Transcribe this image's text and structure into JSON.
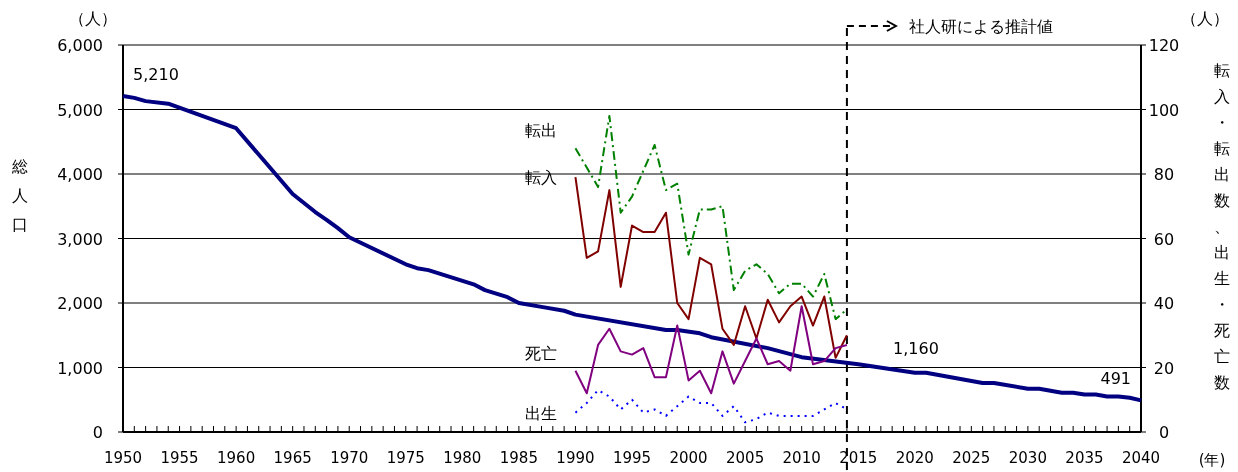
{
  "chart_data": {
    "type": "line",
    "ylabel": "総人口",
    "y2label": "転入・転出数、出生・死亡数",
    "xlabel": "(年)",
    "annotations": [
      "（人）",
      "（人）",
      "1,160"
    ],
    "xlim": [
      1950,
      2040
    ],
    "xticks": [
      1950,
      {
        "value": 1951,
        "label": null
      },
      {
        "value": 1952,
        "label": null
      },
      {
        "value": 1953,
        "label": null
      },
      {
        "value": 1954,
        "label": null
      },
      1955,
      {
        "value": 1956,
        "label": null
      },
      {
        "value": 1957,
        "label": null
      },
      {
        "value": 1958,
        "label": null
      },
      {
        "value": 1959,
        "label": null
      },
      1960,
      {
        "value": 1961,
        "label": null
      },
      {
        "value": 1962,
        "label": null
      },
      {
        "value": 1963,
        "label": null
      },
      {
        "value": 1964,
        "label": null
      },
      1965,
      {
        "value": 1966,
        "label": null
      },
      {
        "value": 1967,
        "label": null
      },
      {
        "value": 1968,
        "label": null
      },
      {
        "value": 1969,
        "label": null
      },
      1970,
      {
        "value": 1971,
        "label": null
      },
      {
        "value": 1972,
        "label": null
      },
      {
        "value": 1973,
        "label": null
      },
      {
        "value": 1974,
        "label": null
      },
      1975,
      {
        "value": 1976,
        "label": null
      },
      {
        "value": 1977,
        "label": null
      },
      {
        "value": 1978,
        "label": null
      },
      {
        "value": 1979,
        "label": null
      },
      1980,
      {
        "value": 1981,
        "label": null
      },
      {
        "value": 1982,
        "label": null
      },
      {
        "value": 1983,
        "label": null
      },
      {
        "value": 1984,
        "label": null
      },
      1985,
      {
        "value": 1986,
        "label": null
      },
      {
        "value": 1987,
        "label": null
      },
      {
        "value": 1988,
        "label": null
      },
      {
        "value": 1989,
        "label": null
      },
      1990,
      {
        "value": 1991,
        "label": null
      },
      {
        "value": 1992,
        "label": null
      },
      {
        "value": 1993,
        "label": null
      },
      {
        "value": 1994,
        "label": null
      },
      1995,
      {
        "value": 1996,
        "label": null
      },
      {
        "value": 1997,
        "label": null
      },
      {
        "value": 1998,
        "label": null
      },
      {
        "value": 1999,
        "label": null
      },
      2000,
      {
        "value": 2001,
        "label": null
      },
      {
        "value": 2002,
        "label": null
      },
      {
        "value": 2003,
        "label": null
      },
      {
        "value": 2004,
        "label": null
      },
      2005,
      {
        "value": 2006,
        "label": null
      },
      {
        "value": 2007,
        "label": null
      },
      {
        "value": 2008,
        "label": null
      },
      {
        "value": 2009,
        "label": null
      },
      2010,
      {
        "value": 2011,
        "label": null
      },
      {
        "value": 2012,
        "label": null
      },
      {
        "value": 2013,
        "label": null
      },
      {
        "value": 2014,
        "label": null
      },
      2015,
      {
        "value": 2016,
        "label": null
      },
      {
        "value": 2017,
        "label": null
      },
      {
        "value": 2018,
        "label": null
      },
      {
        "value": 2019,
        "label": null
      },
      2020,
      {
        "value": 2021,
        "label": null
      },
      {
        "value": 2022,
        "label": null
      },
      {
        "value": 2023,
        "label": null
      },
      {
        "value": 2024,
        "label": null
      },
      2025,
      {
        "value": 2026,
        "label": null
      },
      {
        "value": 2027,
        "label": null
      },
      {
        "value": 2028,
        "label": null
      },
      {
        "value": 2029,
        "label": null
      },
      2030,
      {
        "value": 2031,
        "label": null
      },
      {
        "value": 2032,
        "label": null
      },
      {
        "value": 2033,
        "label": null
      },
      {
        "value": 2034,
        "label": null
      },
      2035,
      {
        "value": 2036,
        "label": null
      },
      {
        "value": 2037,
        "label": null
      },
      {
        "value": 2038,
        "label": null
      },
      {
        "value": 2039,
        "label": null
      },
      2040
    ],
    "ylim": [
      0,
      6000
    ],
    "yticks": [
      0,
      {
        "value": 1000,
        "label": "1,000"
      },
      {
        "value": 2000,
        "label": "2,000"
      },
      {
        "value": 3000,
        "label": "3,000"
      },
      {
        "value": 4000,
        "label": "4,000"
      },
      {
        "value": 5000,
        "label": "5,000"
      },
      {
        "value": 6000,
        "label": "6,000"
      }
    ],
    "y2lim": [
      0,
      120
    ],
    "y2ticks": [
      0,
      20,
      40,
      60,
      80,
      100,
      120
    ],
    "grid": "y",
    "marker": "none",
    "ref_lines": [
      {
        "axis": "x",
        "value": 2014,
        "label": "社人研による推計値",
        "color": "#000000",
        "line_style": "dashed"
      }
    ],
    "series": [
      {
        "color": "#000080",
        "line_style": "solid",
        "x": [
          1950,
          1951,
          1952,
          1954,
          1960,
          1965,
          1967,
          1968,
          1969,
          1970,
          1975,
          1976,
          1977,
          1981,
          1982,
          1984,
          1985,
          1987,
          1989,
          1990,
          1998,
          1999,
          2001,
          2002,
          2007,
          2010,
          2015,
          2020,
          2021,
          2026,
          2027,
          2030,
          2031,
          2033,
          2034,
          2035,
          2036,
          2037,
          2038,
          2039,
          2040
        ],
        "values": [
          5210,
          5180,
          5130,
          5090,
          4710,
          3690,
          3410,
          3290,
          3160,
          3020,
          2600,
          2540,
          2510,
          2290,
          2200,
          2090,
          2000,
          1940,
          1880,
          1820,
          1580,
          1580,
          1530,
          1470,
          1300,
          1160,
          1050,
          920,
          920,
          760,
          760,
          670,
          670,
          610,
          610,
          580,
          580,
          550,
          550,
          530,
          491
        ],
        "value_labels": [
          "5,210",
          null,
          null,
          null,
          null,
          null,
          null,
          null,
          null,
          null,
          null,
          null,
          null,
          null,
          null,
          null,
          null,
          null,
          null,
          null,
          null,
          null,
          null,
          null,
          null,
          null,
          null,
          null,
          null,
          null,
          null,
          null,
          null,
          null,
          null,
          null,
          null,
          null,
          null,
          null,
          "491"
        ]
      },
      {
        "name": "転出",
        "axis": "y2",
        "color": "#008000",
        "line_style": "dashed",
        "x": [
          1990,
          1991,
          1992,
          1993,
          1994,
          1995,
          1996,
          1997,
          1998,
          1999,
          2000,
          2001,
          2002,
          2003,
          2004,
          2005,
          2006,
          2007,
          2008,
          2009,
          2010,
          2011,
          2012,
          2013,
          2014
        ],
        "values": [
          88,
          82,
          76,
          98,
          68,
          73,
          81,
          89,
          75,
          77,
          55,
          69,
          69,
          70,
          44,
          50,
          52,
          49,
          43,
          46,
          46,
          42,
          49,
          35,
          38
        ]
      },
      {
        "name": "転入",
        "axis": "y2",
        "color": "#800000",
        "line_style": "solid",
        "x": [
          1990,
          1991,
          1992,
          1993,
          1994,
          1995,
          1996,
          1997,
          1998,
          1999,
          2000,
          2001,
          2002,
          2003,
          2004,
          2005,
          2006,
          2007,
          2008,
          2009,
          2010,
          2011,
          2012,
          2013,
          2014
        ],
        "values": [
          79,
          54,
          56,
          75,
          45,
          64,
          62,
          62,
          68,
          40,
          35,
          54,
          52,
          32,
          27,
          39,
          29,
          41,
          34,
          39,
          42,
          33,
          42,
          23,
          30
        ]
      },
      {
        "name": "死亡",
        "axis": "y2",
        "color": "#800080",
        "line_style": "solid",
        "x": [
          1990,
          1991,
          1992,
          1993,
          1994,
          1995,
          1996,
          1997,
          1998,
          1999,
          2000,
          2001,
          2002,
          2003,
          2004,
          2005,
          2006,
          2007,
          2008,
          2009,
          2010,
          2011,
          2012,
          2013,
          2014
        ],
        "values": [
          19,
          12,
          27,
          32,
          25,
          24,
          26,
          17,
          17,
          33,
          16,
          19,
          12,
          25,
          15,
          22,
          29,
          21,
          22,
          19,
          39,
          21,
          22,
          26,
          27
        ]
      },
      {
        "name": "出生",
        "axis": "y2",
        "color": "#0000ff",
        "line_style": "dotted",
        "x": [
          1990,
          1991,
          1992,
          1993,
          1994,
          1995,
          1996,
          1997,
          1998,
          1999,
          2000,
          2001,
          2002,
          2003,
          2004,
          2005,
          2006,
          2007,
          2008,
          2009,
          2010,
          2011,
          2012,
          2013,
          2014
        ],
        "values": [
          6,
          9,
          13,
          11,
          7,
          10,
          6,
          7,
          5,
          8,
          11,
          9,
          9,
          5,
          8,
          3,
          4,
          6,
          5,
          5,
          5,
          5,
          7,
          9,
          7
        ]
      }
    ]
  }
}
